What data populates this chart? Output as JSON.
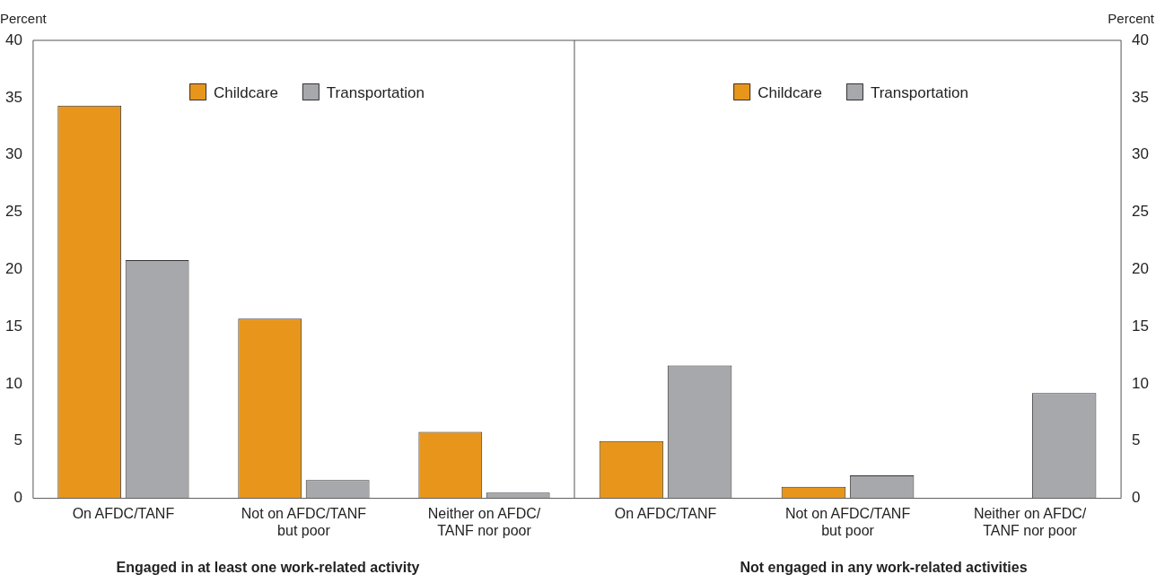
{
  "chart_data": [
    {
      "type": "bar",
      "xlabel": "Engaged in at least one work-related activity",
      "ylabel": "Percent",
      "categories": [
        "On AFDC/TANF",
        "Not on AFDC/TANF\nbut poor",
        "Neither on AFDC/\nTANF nor poor"
      ],
      "series": [
        {
          "name": "Childcare",
          "color": "#e8961b",
          "values": [
            34.3,
            15.7,
            5.8
          ]
        },
        {
          "name": "Transportation",
          "color": "#a7a8ab",
          "values": [
            20.8,
            1.6,
            0.5
          ]
        }
      ],
      "ylim": [
        0,
        40
      ],
      "yticks": [
        0,
        5,
        10,
        15,
        20,
        25,
        30,
        35,
        40
      ],
      "grid": false,
      "legend": "top"
    },
    {
      "type": "bar",
      "xlabel": "Not engaged in any work-related activities",
      "ylabel": "Percent",
      "categories": [
        "On AFDC/TANF",
        "Not on AFDC/TANF\nbut poor",
        "Neither on AFDC/\nTANF nor poor"
      ],
      "series": [
        {
          "name": "Childcare",
          "color": "#e8961b",
          "values": [
            5.0,
            1.0,
            0
          ]
        },
        {
          "name": "Transportation",
          "color": "#a7a8ab",
          "values": [
            11.6,
            2.0,
            9.2
          ]
        }
      ],
      "ylim": [
        0,
        40
      ],
      "yticks": [
        0,
        5,
        10,
        15,
        20,
        25,
        30,
        35,
        40
      ],
      "grid": false,
      "legend": "top"
    }
  ]
}
